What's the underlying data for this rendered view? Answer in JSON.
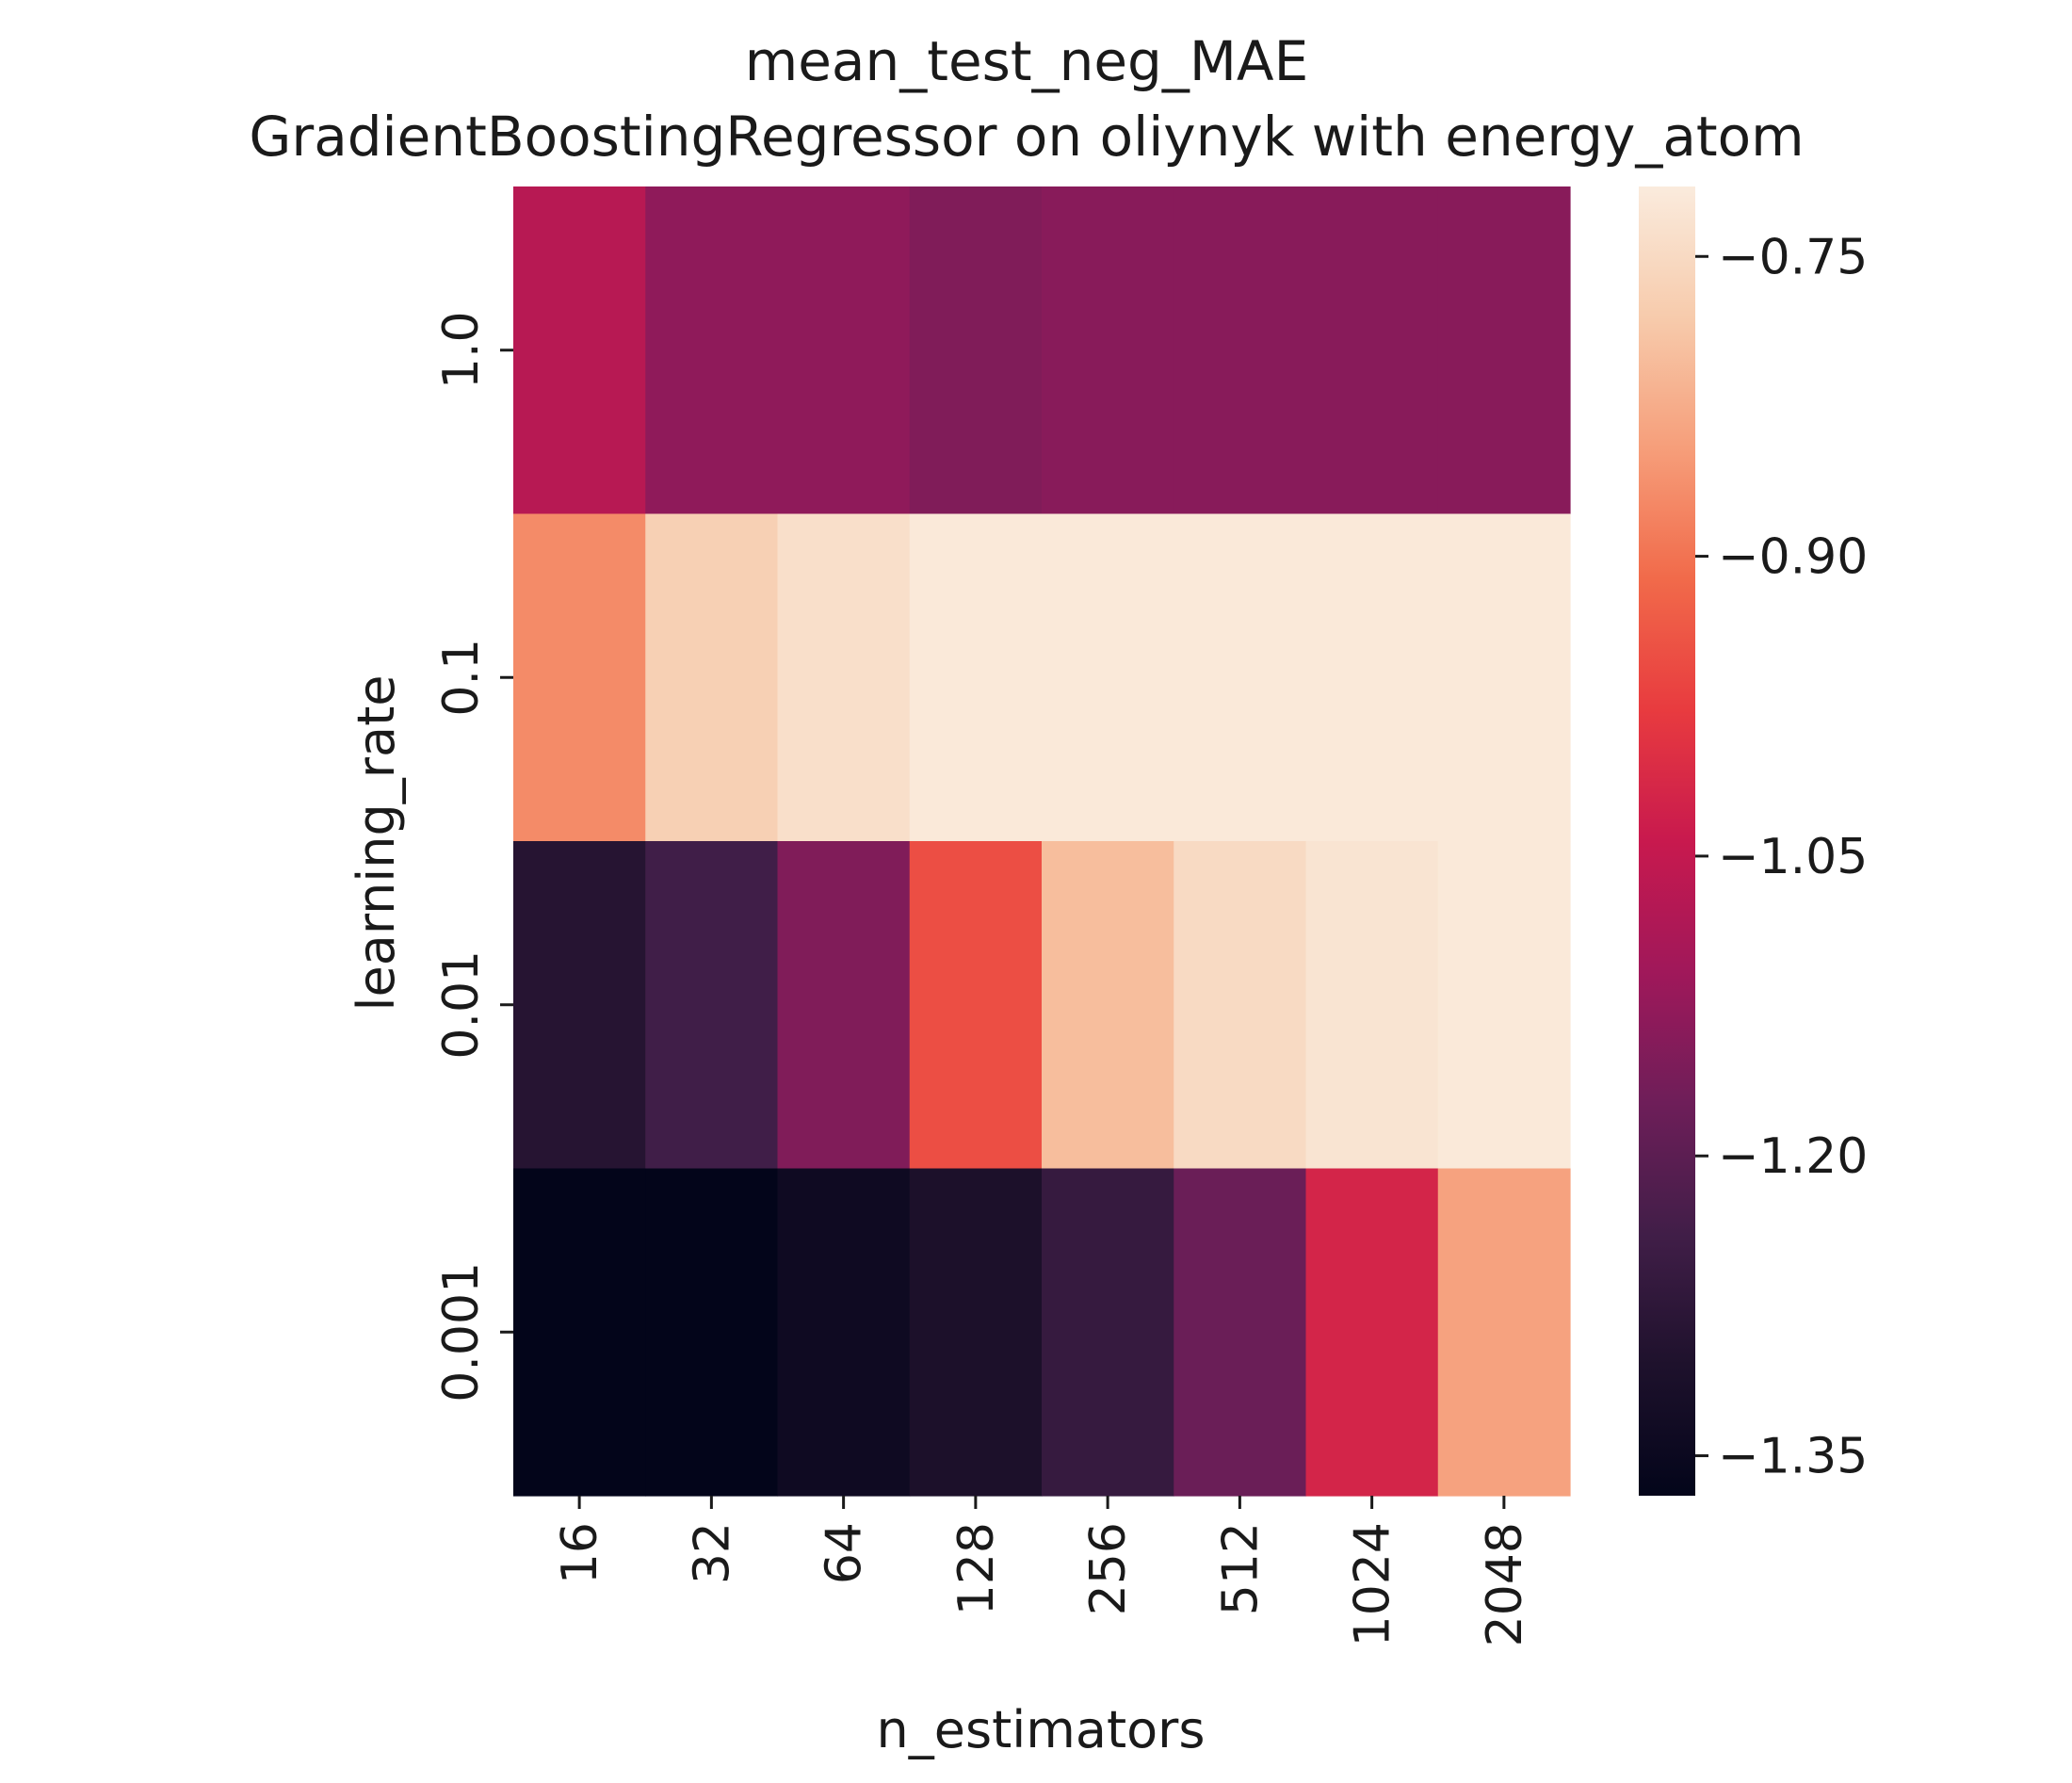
{
  "chart_data": {
    "type": "heatmap",
    "title": "mean_test_neg_MAE",
    "subtitle": "GradientBoostingRegressor on oliynyk with energy_atom",
    "xlabel": "n_estimators",
    "ylabel": "learning_rate",
    "x_categories": [
      "16",
      "32",
      "64",
      "128",
      "256",
      "512",
      "1024",
      "2048"
    ],
    "y_categories": [
      "1.0",
      "0.1",
      "0.01",
      "0.001"
    ],
    "values": [
      [
        -1.07,
        -1.13,
        -1.13,
        -1.15,
        -1.14,
        -1.14,
        -1.14,
        -1.14
      ],
      [
        -0.87,
        -0.77,
        -0.74,
        -0.72,
        -0.72,
        -0.72,
        -0.72,
        -0.72
      ],
      [
        -1.29,
        -1.24,
        -1.15,
        -0.95,
        -0.8,
        -0.75,
        -0.73,
        -0.72
      ],
      [
        -1.37,
        -1.37,
        -1.34,
        -1.31,
        -1.26,
        -1.18,
        -1.02,
        -0.84
      ]
    ],
    "colorbar": {
      "min": -1.37,
      "max": -0.715,
      "ticks": [
        "−0.75",
        "−0.90",
        "−1.05",
        "−1.20",
        "−1.35"
      ],
      "tick_values": [
        -0.75,
        -0.9,
        -1.05,
        -1.2,
        -1.35
      ]
    },
    "colormap": "rocket"
  }
}
